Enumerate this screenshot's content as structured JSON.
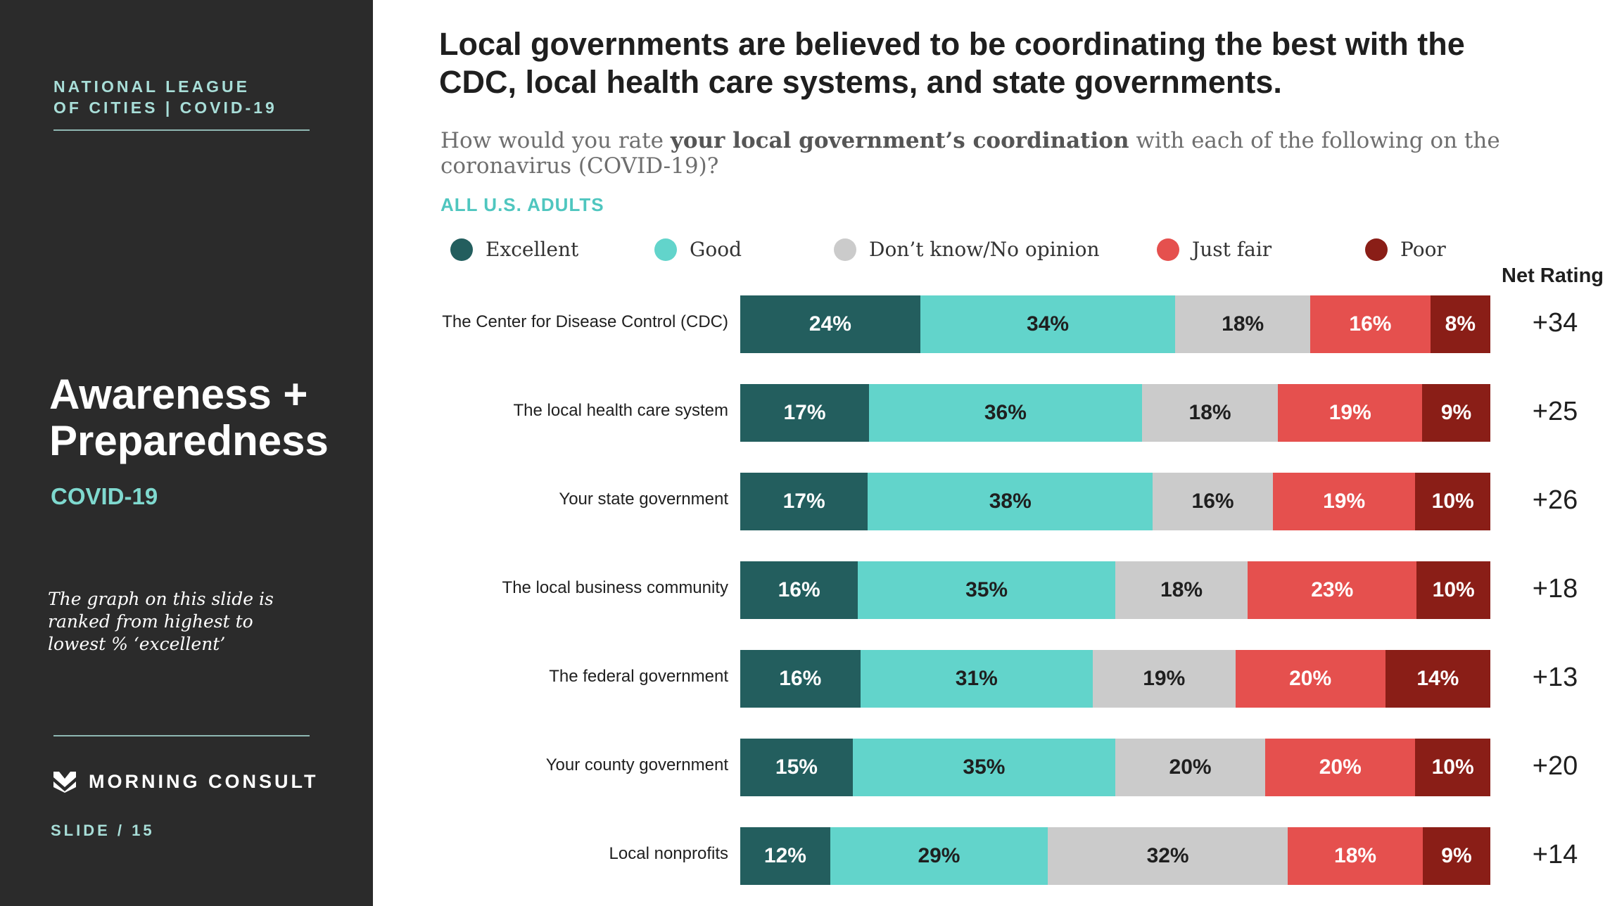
{
  "sidebar": {
    "org_line1": "NATIONAL LEAGUE",
    "org_line2": "OF CITIES | COVID-19",
    "title_line1": "Awareness +",
    "title_line2": "Preparedness",
    "subtitle": "COVID-19",
    "note": "The graph on this slide is ranked from highest to lowest % ‘excellent’",
    "logo_text": "MORNING CONSULT",
    "logo_icon": "morning-consult-chevron-icon",
    "slide_label": "SLIDE /  15"
  },
  "chart_data": {
    "type": "bar",
    "orientation": "horizontal-stacked-100",
    "title": "Local governments are believed to be coordinating the best with the CDC, local health care systems, and state governments.",
    "question_pre": "How would you rate ",
    "question_bold": "your local government’s coordination",
    "question_post": " with each of the following on the coronavirus (COVID-19)?",
    "base_label": "ALL U.S. ADULTS",
    "net_header": "Net Rating",
    "legend_position": "top",
    "categories": [
      "The Center for Disease Control (CDC)",
      "The local health care system",
      "Your state government",
      "The local business community",
      "The federal government",
      "Your county government",
      "Local nonprofits"
    ],
    "series": [
      {
        "name": "Excellent",
        "color": "#235e5e",
        "text_color": "#ffffff",
        "values": [
          24,
          17,
          17,
          16,
          16,
          15,
          12
        ]
      },
      {
        "name": "Good",
        "color": "#62d4cb",
        "text_color": "#1f1f1f",
        "values": [
          34,
          36,
          38,
          35,
          31,
          35,
          29
        ]
      },
      {
        "name": "Don’t know/No opinion",
        "color": "#cbcbcb",
        "text_color": "#1f1f1f",
        "values": [
          18,
          18,
          16,
          18,
          19,
          20,
          32
        ]
      },
      {
        "name": "Just fair",
        "color": "#e5504e",
        "text_color": "#ffffff",
        "values": [
          16,
          19,
          19,
          23,
          20,
          20,
          18
        ]
      },
      {
        "name": "Poor",
        "color": "#8a1e17",
        "text_color": "#ffffff",
        "values": [
          8,
          9,
          10,
          10,
          14,
          10,
          9
        ]
      }
    ],
    "net_rating": [
      "+34",
      "+25",
      "+26",
      "+18",
      "+13",
      "+20",
      "+14"
    ]
  }
}
